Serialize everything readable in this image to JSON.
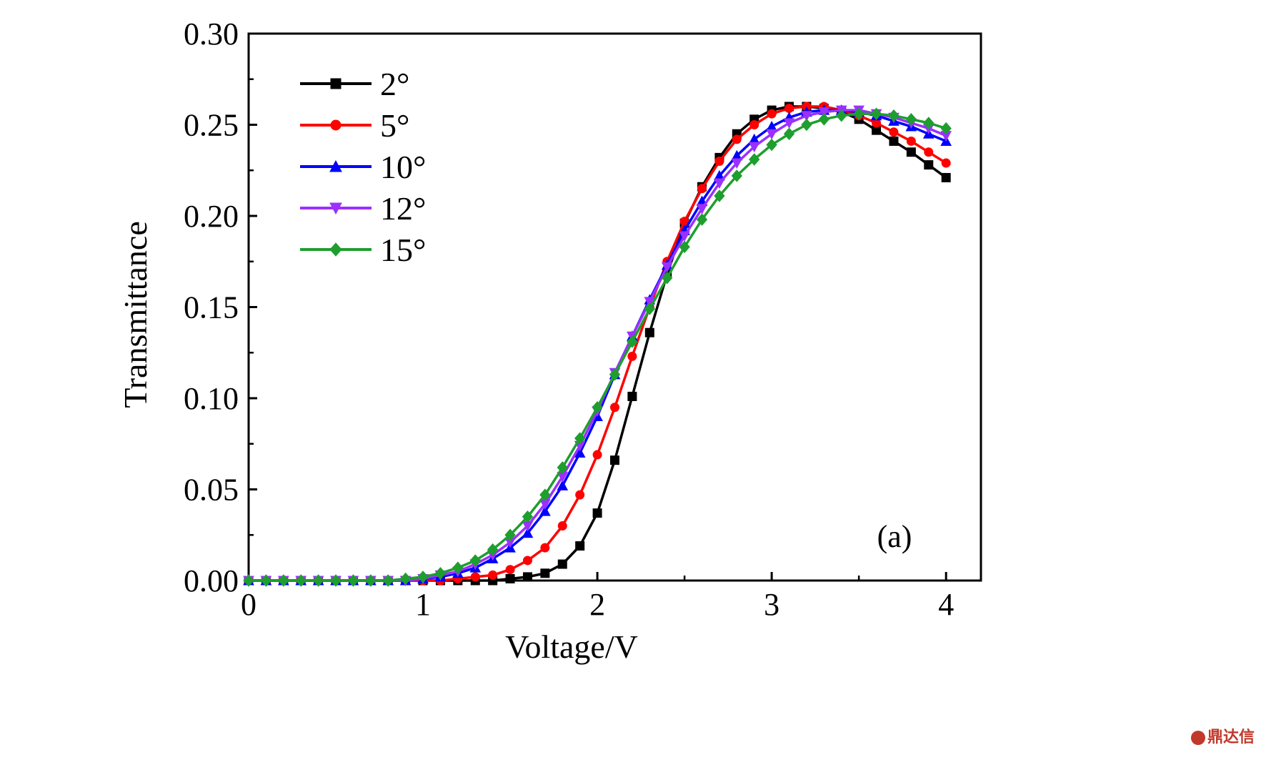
{
  "chart_data": {
    "type": "line",
    "xlabel": "Voltage/V",
    "ylabel": "Transmittance",
    "panel_label": "(a)",
    "xlim": [
      0,
      4.2
    ],
    "ylim": [
      0,
      0.3
    ],
    "x_ticks": [
      0,
      1,
      2,
      3,
      4
    ],
    "x_tick_labels": [
      "0",
      "1",
      "2",
      "3",
      "4"
    ],
    "y_ticks": [
      0,
      0.05,
      0.1,
      0.15,
      0.2,
      0.25,
      0.3
    ],
    "y_tick_labels": [
      "0.00",
      "0.05",
      "0.10",
      "0.15",
      "0.20",
      "0.25",
      "0.30"
    ],
    "grid": false,
    "legend_position": "top-left",
    "x": [
      0,
      0.1,
      0.2,
      0.3,
      0.4,
      0.5,
      0.6,
      0.7,
      0.8,
      0.9,
      1.0,
      1.1,
      1.2,
      1.3,
      1.4,
      1.5,
      1.6,
      1.7,
      1.8,
      1.9,
      2.0,
      2.1,
      2.2,
      2.3,
      2.4,
      2.5,
      2.6,
      2.7,
      2.8,
      2.9,
      3.0,
      3.1,
      3.2,
      3.3,
      3.4,
      3.5,
      3.6,
      3.7,
      3.8,
      3.9,
      4.0
    ],
    "series": [
      {
        "name": "2°",
        "color": "#000000",
        "marker": "square",
        "values": [
          0,
          0,
          0,
          0,
          0,
          0,
          0,
          0,
          0,
          0,
          0,
          0,
          0,
          0,
          0,
          0.001,
          0.002,
          0.004,
          0.009,
          0.019,
          0.037,
          0.066,
          0.101,
          0.136,
          0.168,
          0.196,
          0.216,
          0.232,
          0.245,
          0.253,
          0.258,
          0.26,
          0.26,
          0.259,
          0.257,
          0.253,
          0.247,
          0.241,
          0.235,
          0.228,
          0.221
        ]
      },
      {
        "name": "5°",
        "color": "#ff0000",
        "marker": "circle",
        "values": [
          0,
          0,
          0,
          0,
          0,
          0,
          0,
          0,
          0,
          0,
          0,
          0,
          0.001,
          0.002,
          0.003,
          0.006,
          0.011,
          0.018,
          0.03,
          0.047,
          0.069,
          0.095,
          0.123,
          0.15,
          0.175,
          0.197,
          0.215,
          0.23,
          0.242,
          0.25,
          0.256,
          0.259,
          0.26,
          0.26,
          0.258,
          0.255,
          0.251,
          0.246,
          0.241,
          0.235,
          0.229
        ]
      },
      {
        "name": "10°",
        "color": "#0000ff",
        "marker": "triangle-up",
        "values": [
          0,
          0,
          0,
          0,
          0,
          0,
          0,
          0,
          0,
          0,
          0.001,
          0.002,
          0.004,
          0.007,
          0.012,
          0.018,
          0.026,
          0.038,
          0.052,
          0.07,
          0.09,
          0.113,
          0.134,
          0.154,
          0.173,
          0.192,
          0.208,
          0.222,
          0.233,
          0.242,
          0.249,
          0.254,
          0.257,
          0.258,
          0.258,
          0.257,
          0.255,
          0.252,
          0.249,
          0.245,
          0.241
        ]
      },
      {
        "name": "12°",
        "color": "#9b30ff",
        "marker": "triangle-down",
        "values": [
          0,
          0,
          0,
          0,
          0,
          0,
          0,
          0,
          0,
          0,
          0.001,
          0.003,
          0.005,
          0.009,
          0.014,
          0.021,
          0.03,
          0.042,
          0.057,
          0.074,
          0.093,
          0.114,
          0.134,
          0.153,
          0.172,
          0.189,
          0.204,
          0.218,
          0.229,
          0.238,
          0.245,
          0.251,
          0.255,
          0.257,
          0.258,
          0.258,
          0.256,
          0.254,
          0.251,
          0.248,
          0.244
        ]
      },
      {
        "name": "15°",
        "color": "#1e9e2e",
        "marker": "diamond",
        "values": [
          0,
          0,
          0,
          0,
          0,
          0,
          0,
          0,
          0,
          0.001,
          0.002,
          0.004,
          0.007,
          0.011,
          0.017,
          0.025,
          0.035,
          0.047,
          0.062,
          0.078,
          0.095,
          0.113,
          0.131,
          0.149,
          0.166,
          0.183,
          0.198,
          0.211,
          0.222,
          0.231,
          0.239,
          0.245,
          0.25,
          0.253,
          0.255,
          0.256,
          0.256,
          0.255,
          0.253,
          0.251,
          0.248
        ]
      }
    ]
  },
  "watermark": {
    "text": "鼎达信"
  }
}
